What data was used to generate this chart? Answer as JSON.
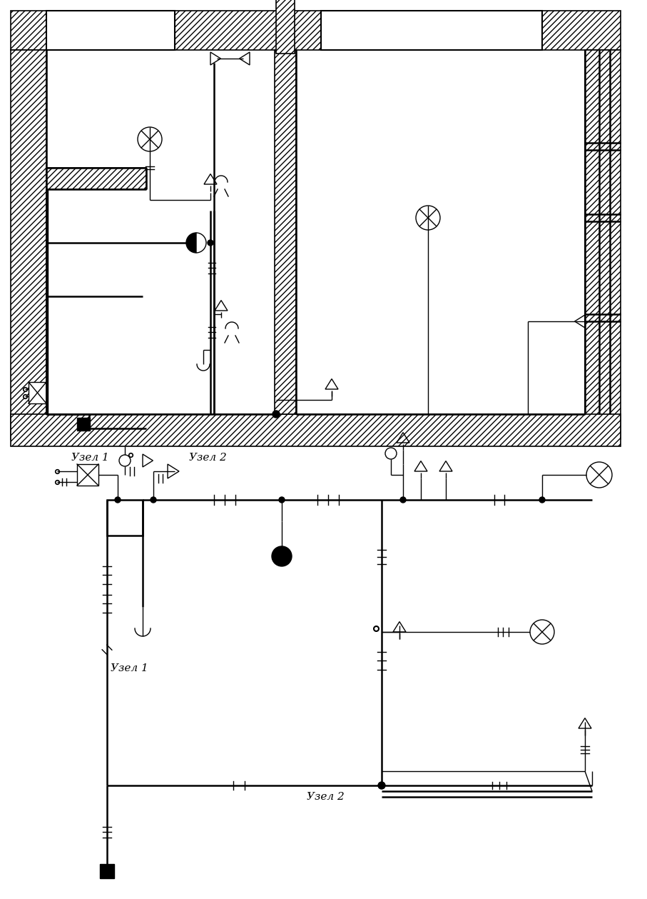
{
  "bg_color": "#ffffff",
  "fig_width": 9.07,
  "fig_height": 12.59,
  "dpi": 100,
  "lw_thin": 1.0,
  "lw_med": 1.8,
  "lw_thick": 3.0,
  "label_uzel1_top": "Узел 1",
  "label_uzel2_top": "Узел 2",
  "label_uzel1_bot": "Узел 1",
  "label_uzel2_bot": "Узел 2"
}
